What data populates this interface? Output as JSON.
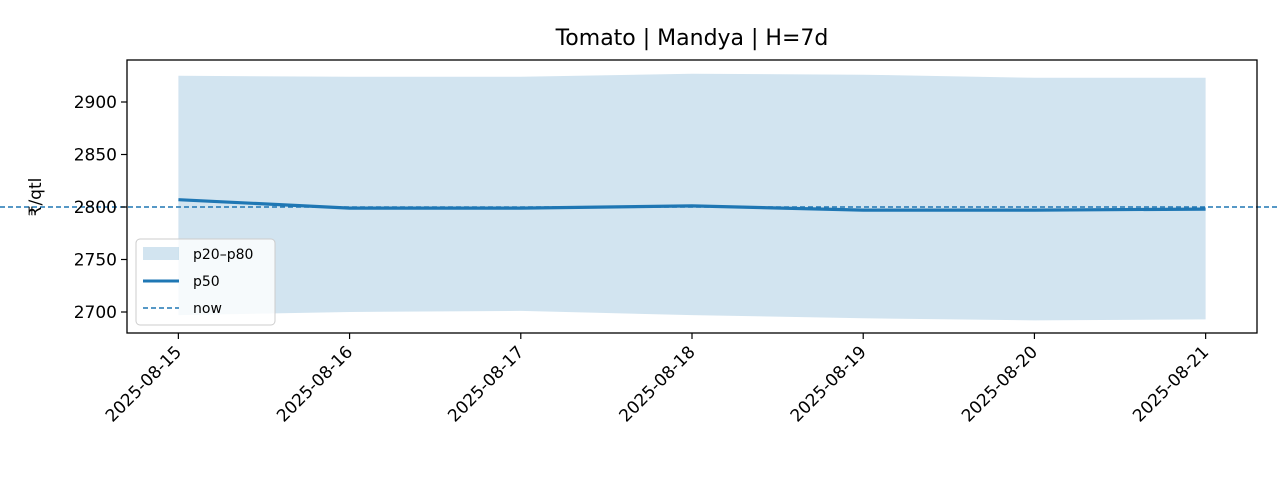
{
  "chart_data": {
    "type": "line",
    "title": "Tomato | Mandya | H=7d",
    "xlabel": "",
    "ylabel": "₹/qtl",
    "x": [
      "2025-08-15",
      "2025-08-16",
      "2025-08-17",
      "2025-08-18",
      "2025-08-19",
      "2025-08-20",
      "2025-08-21"
    ],
    "series": [
      {
        "name": "p50",
        "kind": "line",
        "values": [
          2807,
          2799,
          2799,
          2801,
          2797,
          2797,
          2798
        ],
        "color": "#1f77b4"
      },
      {
        "name": "p20–p80",
        "kind": "band",
        "lower": [
          2697,
          2700,
          2701,
          2697,
          2694,
          2692,
          2693
        ],
        "upper": [
          2925,
          2924,
          2924,
          2927,
          2926,
          2923,
          2923
        ],
        "color": "#1f77b4",
        "opacity": 0.2
      }
    ],
    "reference_lines": [
      {
        "name": "now",
        "orientation": "horizontal",
        "value": 2800,
        "style": "dashed",
        "color": "#1f77b4"
      }
    ],
    "yticks": [
      2700,
      2750,
      2800,
      2850,
      2900
    ],
    "ylim": [
      2680,
      2940
    ],
    "xlim_pad": 0.3,
    "grid": false,
    "legend": {
      "position": "lower-left",
      "entries": [
        "p20–p80",
        "p50",
        "now"
      ]
    }
  }
}
